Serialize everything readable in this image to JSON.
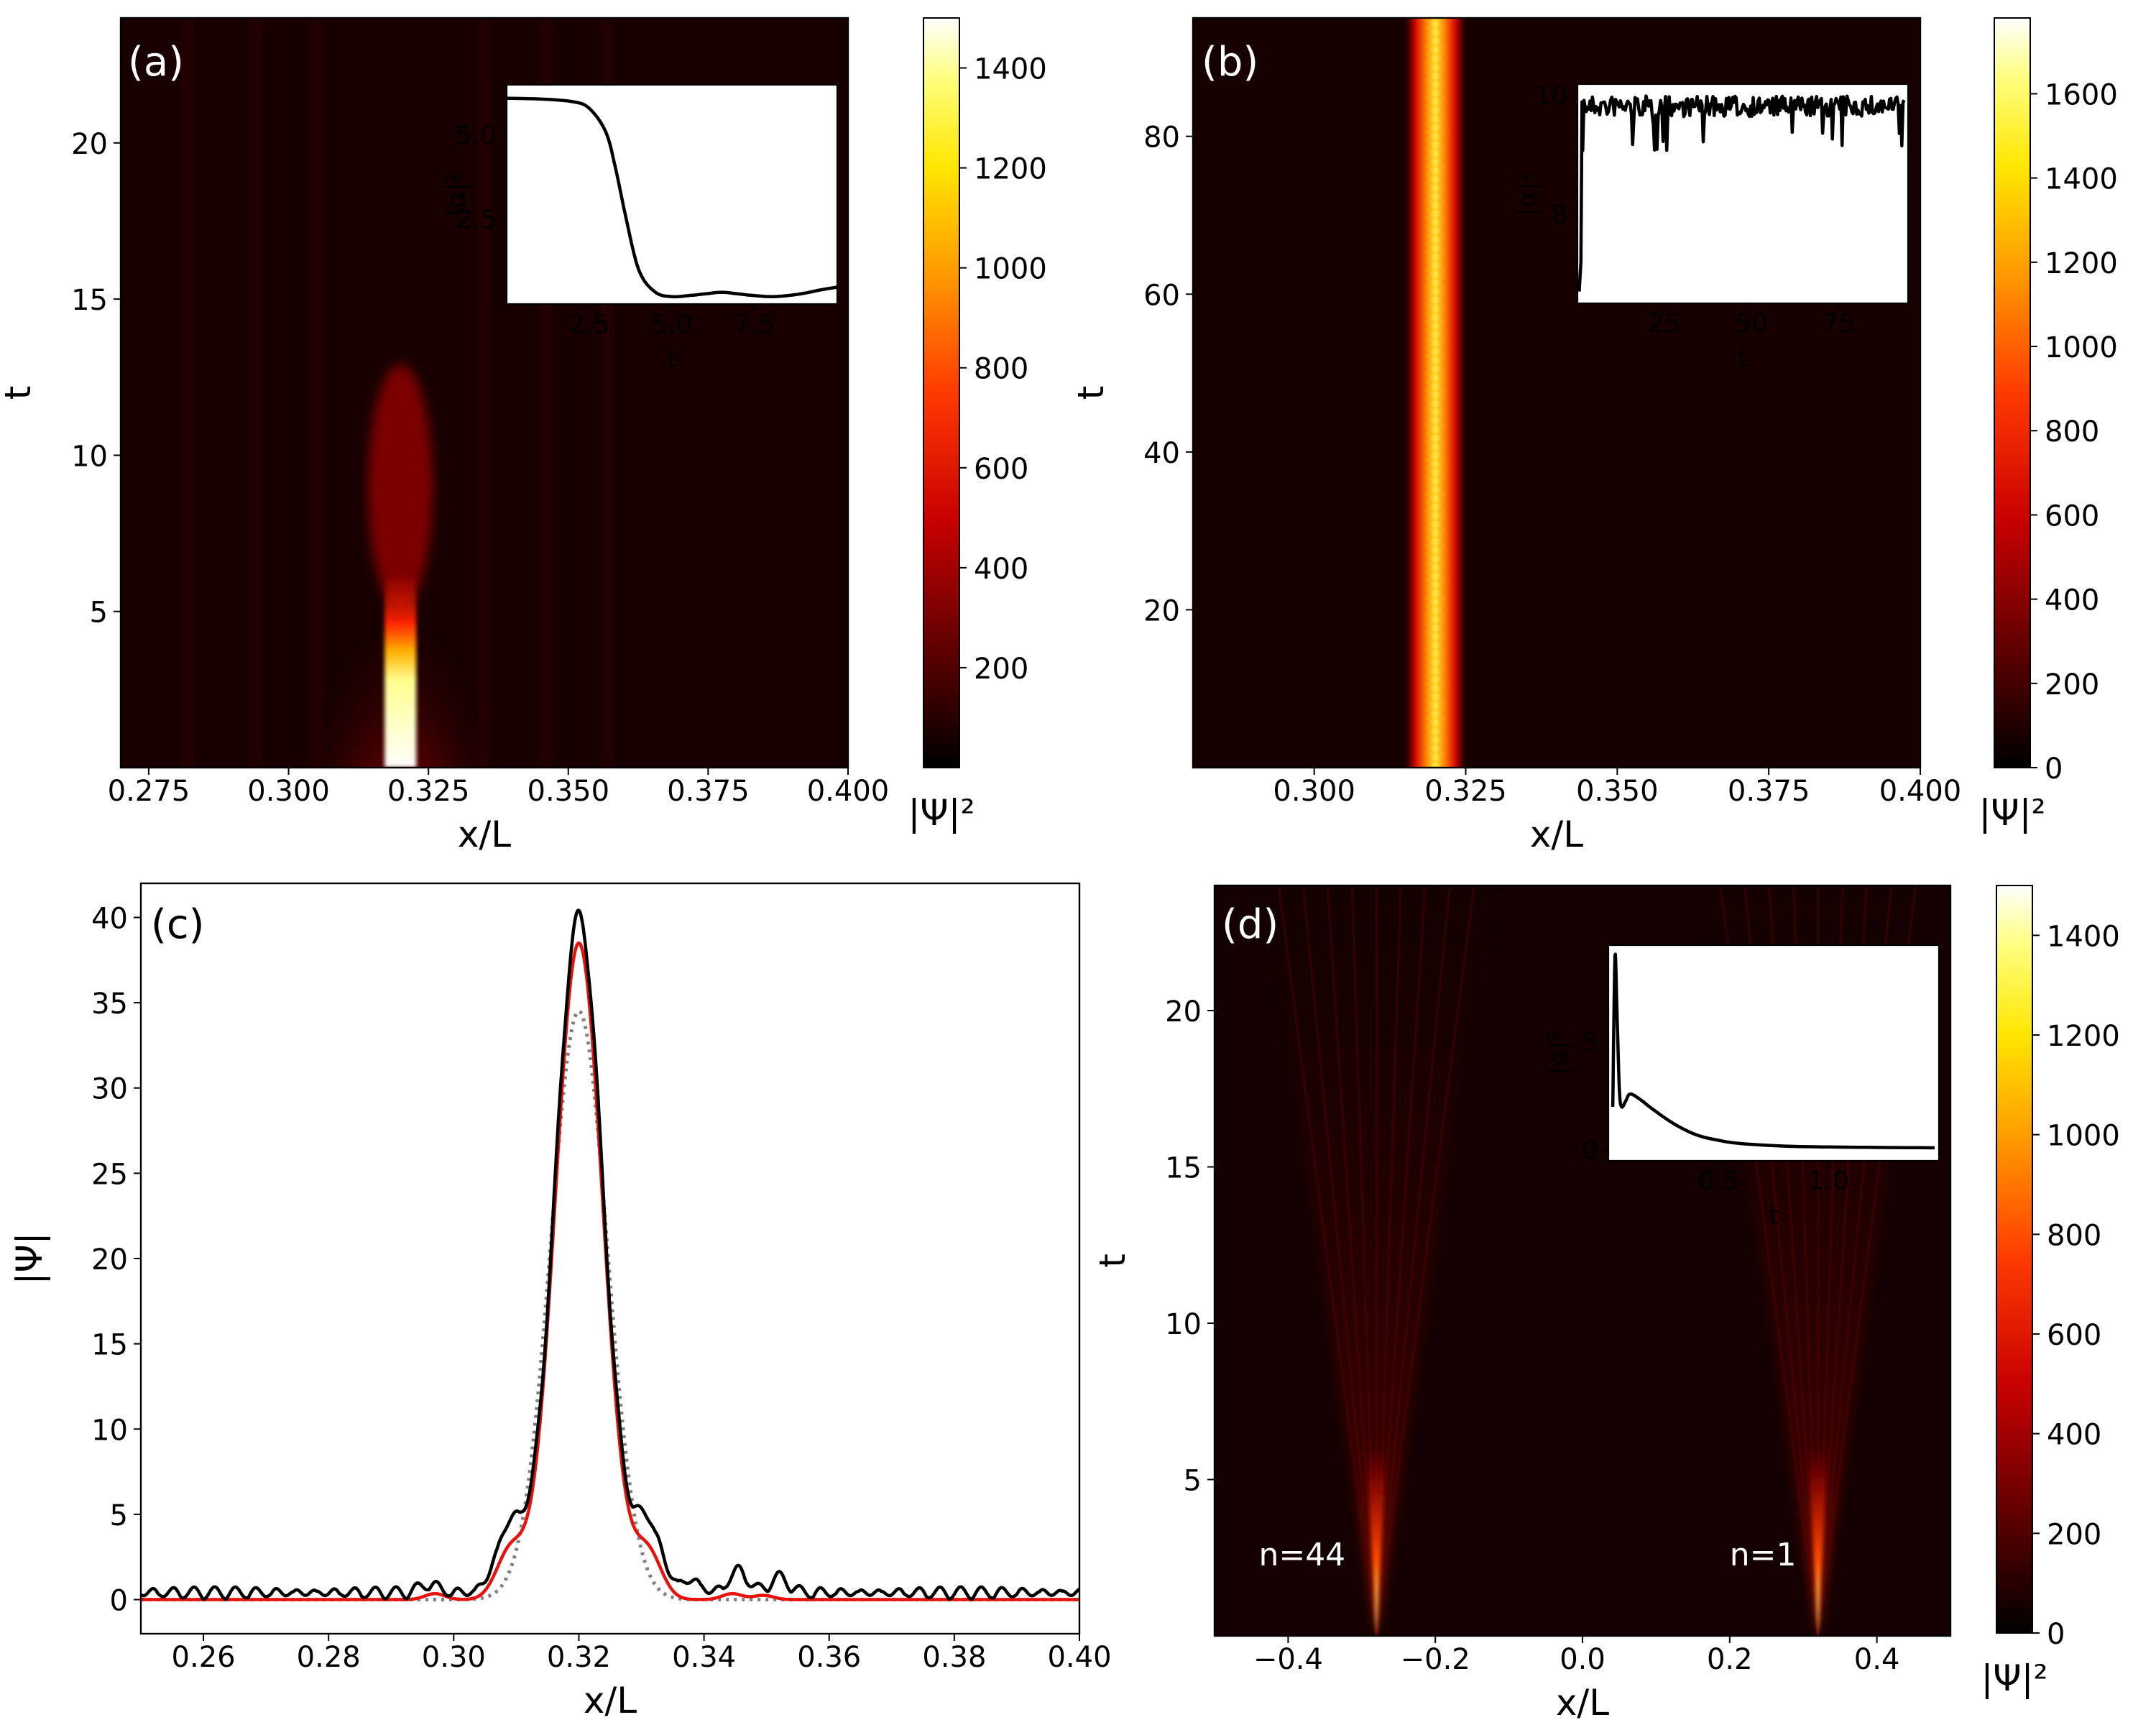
{
  "figure": {
    "colormap": [
      "#000000",
      "#3d0000",
      "#8b0000",
      "#d40000",
      "#ff4d00",
      "#ff9900",
      "#ffe000",
      "#ffff66",
      "#ffffff"
    ]
  },
  "chart_data": [
    {
      "id": "a",
      "type": "heatmap",
      "panel_label": "(a)",
      "xlabel": "x/L",
      "ylabel": "t",
      "xlim": [
        0.27,
        0.4
      ],
      "ylim": [
        0,
        24
      ],
      "xticks": [
        0.275,
        0.3,
        0.325,
        0.35,
        0.375,
        0.4
      ],
      "xtick_labels": [
        "0.275",
        "0.300",
        "0.325",
        "0.350",
        "0.375",
        "0.400"
      ],
      "yticks": [
        5,
        10,
        15,
        20
      ],
      "ytick_labels": [
        "5",
        "10",
        "15",
        "20"
      ],
      "colorbar": {
        "label": "|Ψ|²",
        "range": [
          0,
          1500
        ],
        "ticks": [
          200,
          400,
          600,
          800,
          1000,
          1200,
          1400
        ],
        "tick_labels": [
          "200",
          "400",
          "600",
          "800",
          "1000",
          "1200",
          "1400"
        ]
      },
      "pulse": {
        "center": 0.32,
        "peak": 1500,
        "description": "bright soliton at x/L=0.32 that decays after t≈4 and spreads"
      },
      "inset": {
        "type": "line",
        "xlabel": "t",
        "ylabel": "|α|²",
        "xlim": [
          0,
          10
        ],
        "ylim": [
          0,
          6.5
        ],
        "xticks": [
          2.5,
          5.0,
          7.5
        ],
        "xtick_labels": [
          "2.5",
          "5.0",
          "7.5"
        ],
        "yticks": [
          2.5,
          5.0
        ],
        "ytick_labels": [
          "2.5",
          "5.0"
        ],
        "x": [
          0,
          1,
          2,
          2.5,
          3,
          3.3,
          3.6,
          4,
          4.5,
          5,
          5.5,
          6,
          6.5,
          7,
          7.5,
          8,
          8.5,
          9,
          9.5,
          10
        ],
        "y": [
          6.1,
          6.08,
          6.0,
          5.8,
          5.1,
          4.0,
          2.6,
          1.0,
          0.35,
          0.22,
          0.25,
          0.3,
          0.35,
          0.3,
          0.25,
          0.22,
          0.25,
          0.32,
          0.42,
          0.5
        ]
      }
    },
    {
      "id": "b",
      "type": "heatmap",
      "panel_label": "(b)",
      "xlabel": "x/L",
      "ylabel": "t",
      "xlim": [
        0.28,
        0.4
      ],
      "ylim": [
        0,
        95
      ],
      "xticks": [
        0.3,
        0.325,
        0.35,
        0.375,
        0.4
      ],
      "xtick_labels": [
        "0.300",
        "0.325",
        "0.350",
        "0.375",
        "0.400"
      ],
      "yticks": [
        20,
        40,
        60,
        80
      ],
      "ytick_labels": [
        "20",
        "40",
        "60",
        "80"
      ],
      "colorbar": {
        "label": "|Ψ|²",
        "range": [
          0,
          1780
        ],
        "ticks": [
          0,
          200,
          400,
          600,
          800,
          1000,
          1200,
          1400,
          1600
        ],
        "tick_labels": [
          "0",
          "200",
          "400",
          "600",
          "800",
          "1000",
          "1200",
          "1400",
          "1600"
        ]
      },
      "pulse": {
        "center": 0.32,
        "peak": 1600,
        "description": "stable soliton at x/L=0.32 for all t"
      },
      "inset": {
        "type": "line",
        "xlabel": "t",
        "ylabel": "|α|²",
        "xlim": [
          0,
          95
        ],
        "ylim": [
          6.5,
          10.2
        ],
        "xticks": [
          25,
          50,
          75
        ],
        "xtick_labels": [
          "25",
          "50",
          "75"
        ],
        "yticks": [
          8,
          10
        ],
        "ytick_labels": [
          "8",
          "10"
        ],
        "description": "rises from ~6.7 to ~10 at t≈1 then fluctuates between ~8.9 and 10"
      }
    },
    {
      "id": "c",
      "type": "line",
      "panel_label": "(c)",
      "xlabel": "x/L",
      "ylabel": "|Ψ|",
      "xlim": [
        0.25,
        0.4
      ],
      "ylim": [
        -2,
        42
      ],
      "xticks": [
        0.26,
        0.28,
        0.3,
        0.32,
        0.34,
        0.36,
        0.38,
        0.4
      ],
      "xtick_labels": [
        "0.26",
        "0.28",
        "0.30",
        "0.32",
        "0.34",
        "0.36",
        "0.38",
        "0.40"
      ],
      "yticks": [
        0,
        5,
        10,
        15,
        20,
        25,
        30,
        35,
        40
      ],
      "ytick_labels": [
        "0",
        "5",
        "10",
        "15",
        "20",
        "25",
        "30",
        "35",
        "40"
      ],
      "series": [
        {
          "name": "black",
          "color": "#000000",
          "style": "solid",
          "peak": 39.7,
          "center": 0.32,
          "side_lobes": [
            {
              "x": 0.309,
              "y": 3.7
            },
            {
              "x": 0.331,
              "y": 3.9
            }
          ],
          "background": 0.5
        },
        {
          "name": "red",
          "color": "#e8120c",
          "style": "solid",
          "peak": 38.5,
          "center": 0.32,
          "side_lobes": [
            {
              "x": 0.309,
              "y": 2.7
            },
            {
              "x": 0.331,
              "y": 2.7
            }
          ],
          "background": 0.05
        },
        {
          "name": "gray",
          "color": "#808080",
          "style": "dotted",
          "peak": 34.5,
          "center": 0.32,
          "width": 0.0045
        }
      ]
    },
    {
      "id": "d",
      "type": "heatmap",
      "panel_label": "(d)",
      "xlabel": "x/L",
      "ylabel": "t",
      "xlim": [
        -0.5,
        0.5
      ],
      "ylim": [
        0,
        24
      ],
      "xticks": [
        -0.4,
        -0.2,
        0.0,
        0.2,
        0.4
      ],
      "xtick_labels": [
        "−0.4",
        "−0.2",
        "0.0",
        "0.2",
        "0.4"
      ],
      "yticks": [
        5,
        10,
        15,
        20
      ],
      "ytick_labels": [
        "5",
        "10",
        "15",
        "20"
      ],
      "colorbar": {
        "label": "|Ψ|²",
        "range": [
          0,
          1500
        ],
        "ticks": [
          0,
          200,
          400,
          600,
          800,
          1000,
          1200,
          1400
        ],
        "tick_labels": [
          "0",
          "200",
          "400",
          "600",
          "800",
          "1000",
          "1200",
          "1400"
        ]
      },
      "annotations": [
        {
          "text": "n=44",
          "x": -0.44,
          "t": 2.6
        },
        {
          "text": "n=1",
          "x": 0.2,
          "t": 2.6
        }
      ],
      "pulses": [
        {
          "center": -0.28
        },
        {
          "center": 0.32
        }
      ],
      "inset": {
        "type": "line",
        "xlabel": "t",
        "ylabel": "|α|²",
        "xlim": [
          0,
          1.5
        ],
        "ylim": [
          -0.5,
          9.5
        ],
        "xticks": [
          0.5,
          1.0
        ],
        "xtick_labels": [
          "0.5",
          "1.0"
        ],
        "yticks": [
          0,
          5
        ],
        "ytick_labels": [
          "0",
          "5"
        ],
        "x": [
          0.02,
          0.03,
          0.04,
          0.05,
          0.06,
          0.08,
          0.1,
          0.15,
          0.2,
          0.3,
          0.4,
          0.5,
          0.6,
          0.8,
          1.0,
          1.2,
          1.48
        ],
        "y": [
          2.0,
          9.0,
          6.0,
          2.8,
          2.0,
          2.3,
          2.6,
          2.3,
          1.9,
          1.2,
          0.7,
          0.45,
          0.3,
          0.18,
          0.14,
          0.12,
          0.1
        ]
      }
    }
  ]
}
